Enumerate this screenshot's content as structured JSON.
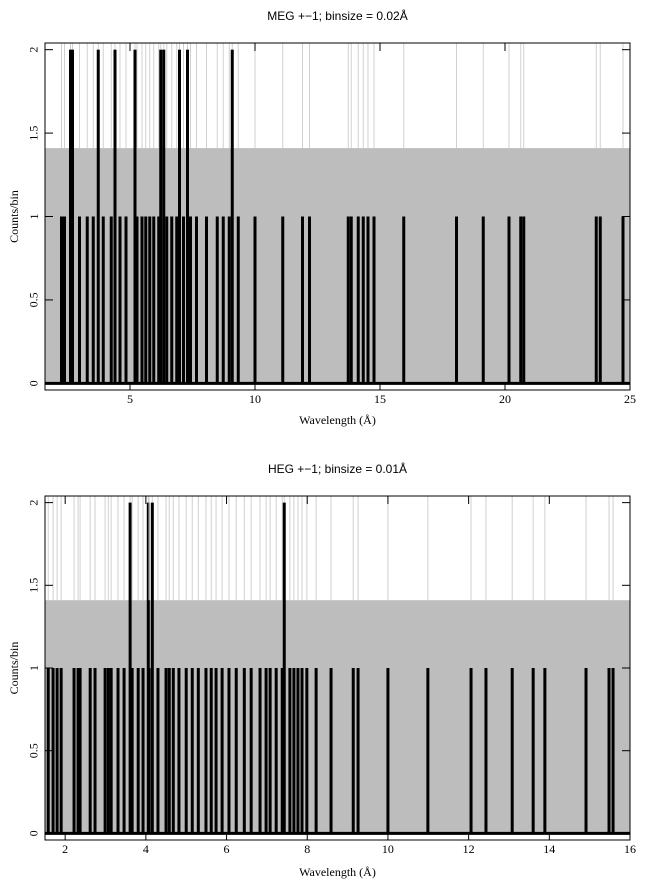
{
  "chart_data": [
    {
      "type": "bar",
      "title": "MEG +−1; binsize = 0.02Å",
      "x_label": "Wavelength (Å)",
      "y_label": "Counts/bin",
      "x": [
        2.26,
        2.38,
        2.62,
        2.7,
        2.98,
        3.29,
        3.53,
        3.73,
        3.93,
        4.25,
        4.4,
        4.6,
        4.84,
        5.2,
        5.28,
        5.48,
        5.63,
        5.79,
        5.95,
        6.15,
        6.23,
        6.35,
        6.47,
        6.67,
        6.87,
        6.98,
        7.14,
        7.3,
        7.42,
        7.66,
        8.06,
        8.49,
        8.73,
        8.97,
        9.09,
        9.33,
        10.0,
        11.11,
        11.9,
        12.18,
        13.73,
        13.85,
        14.13,
        14.33,
        14.52,
        14.76,
        15.95,
        18.06,
        19.13,
        20.16,
        20.63,
        20.75,
        23.65,
        23.81,
        24.72
      ],
      "values": [
        1,
        1,
        2,
        2,
        1,
        1,
        1,
        2,
        1,
        1,
        2,
        1,
        1,
        2,
        1,
        1,
        1,
        1,
        1,
        1,
        2,
        2,
        1,
        1,
        1,
        2,
        1,
        2,
        1,
        1,
        1,
        1,
        1,
        1,
        2,
        1,
        1,
        1,
        1,
        1,
        1,
        1,
        1,
        1,
        1,
        1,
        1,
        1,
        1,
        1,
        1,
        1,
        1,
        1,
        1
      ],
      "color": "#000000",
      "error_level": 1.41,
      "error_color": "#bdbdbd",
      "xlim": [
        1.6,
        25
      ],
      "xticks": [
        5,
        10,
        15,
        20,
        25
      ],
      "ylim": [
        -0.04,
        2.04
      ],
      "yticks": [
        0,
        0.5,
        1,
        1.5,
        2
      ]
    },
    {
      "type": "bar",
      "title": "HEG +−1; binsize = 0.01Å",
      "x_label": "Wavelength (Å)",
      "y_label": "Counts/bin",
      "x": [
        1.58,
        1.7,
        1.8,
        1.9,
        2.22,
        2.32,
        2.37,
        2.62,
        2.74,
        2.99,
        3.07,
        3.14,
        3.31,
        3.46,
        3.61,
        3.66,
        3.81,
        3.93,
        4.06,
        4.08,
        4.16,
        4.3,
        4.5,
        4.58,
        4.68,
        4.82,
        5.0,
        5.15,
        5.3,
        5.49,
        5.62,
        5.74,
        5.89,
        6.06,
        6.24,
        6.44,
        6.61,
        6.83,
        6.98,
        7.08,
        7.23,
        7.38,
        7.43,
        7.57,
        7.67,
        7.77,
        7.87,
        7.99,
        8.22,
        8.59,
        9.14,
        9.26,
        10.0,
        10.99,
        12.06,
        12.43,
        13.08,
        13.6,
        13.89,
        14.91,
        15.48,
        15.58
      ],
      "values": [
        1,
        1,
        1,
        1,
        1,
        1,
        1,
        1,
        1,
        1,
        1,
        1,
        1,
        1,
        2,
        1,
        1,
        1,
        2,
        1,
        2,
        1,
        1,
        1,
        1,
        1,
        1,
        1,
        1,
        1,
        1,
        1,
        1,
        1,
        1,
        1,
        1,
        1,
        1,
        1,
        1,
        1,
        2,
        1,
        1,
        1,
        1,
        1,
        1,
        1,
        1,
        1,
        1,
        1,
        1,
        1,
        1,
        1,
        1,
        1,
        1,
        1
      ],
      "color": "#000000",
      "error_level": 1.41,
      "error_color": "#bdbdbd",
      "xlim": [
        1.5,
        16
      ],
      "xticks": [
        2,
        4,
        6,
        8,
        10,
        12,
        14,
        16
      ],
      "ylim": [
        -0.04,
        2.04
      ],
      "yticks": [
        0,
        0.5,
        1,
        1.5,
        2
      ]
    }
  ]
}
